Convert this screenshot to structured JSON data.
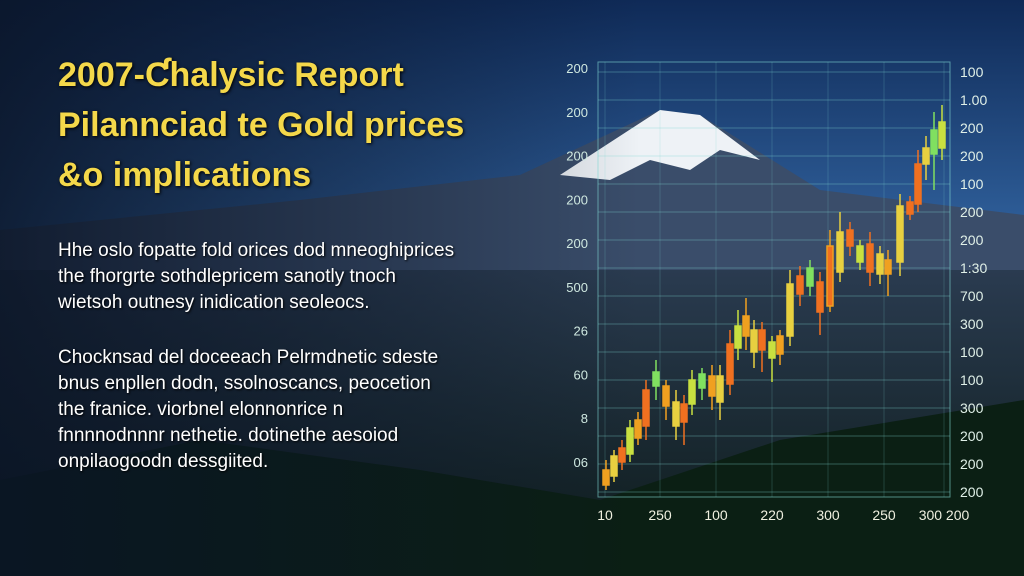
{
  "header": {
    "title_lines": [
      "2007-Ƈhalysic Report",
      "Pilannciad te Gold prices",
      "&o implications"
    ]
  },
  "paragraphs": [
    [
      "Hhe oslo fopatte fold orices dod mneoghiprices",
      "the fhorgrte sothdlepricem sanotly tnoch",
      "wietsoh outnesy inidication seoleocs."
    ],
    [
      "Chocknsad del doceeach Pelrmdnetic sdeste",
      "bnus enpllen dodn, ssolnoscancs, peocetion",
      "the franice. viorbnel elonnonrice n",
      "fnnnnodnnnr nethetie. dotinethe aesoiod",
      "onpilaogoodn dessgiited."
    ]
  ],
  "chart": {
    "left_axis": [
      "200",
      "200",
      "200",
      "200",
      "200",
      "500",
      "26",
      "60",
      "8",
      "06"
    ],
    "right_axis": [
      "100",
      "1.00",
      "200",
      "200",
      "100",
      "200",
      "200",
      "1:30",
      "700",
      "300",
      "100",
      "100",
      "300",
      "200",
      "200",
      "200"
    ],
    "bottom_axis": [
      "10",
      "250",
      "100",
      "220",
      "300",
      "250",
      "300 200"
    ]
  }
}
